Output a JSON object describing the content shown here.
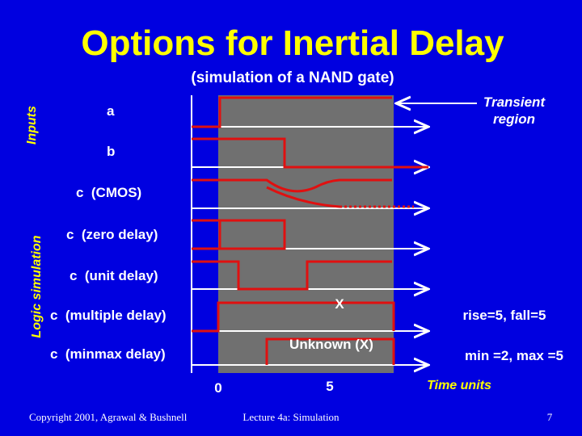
{
  "header": {
    "title": "Options for Inertial Delay",
    "subtitle": "(simulation of a NAND gate)"
  },
  "side_labels": {
    "inputs": "Inputs",
    "logic_simulation": "Logic simulation"
  },
  "transient": [
    "Transient",
    "region"
  ],
  "signals": [
    "a",
    "b",
    "c  (CMOS)",
    "c  (zero delay)",
    "c  (unit delay)",
    "c  (multiple delay)",
    "c  (minmax delay)"
  ],
  "annotations": {
    "multiple_x": "X",
    "minmax_x": "Unknown (X)",
    "multiple_note": "rise=5, fall=5",
    "minmax_note": "min =2, max =5"
  },
  "time_axis": {
    "start": "0",
    "mid": "5",
    "label": "Time units"
  },
  "footer": {
    "copyright": "Copyright 2001, Agrawal & Bushnell",
    "lecture": "Lecture 4a: Simulation",
    "page": "7"
  }
}
